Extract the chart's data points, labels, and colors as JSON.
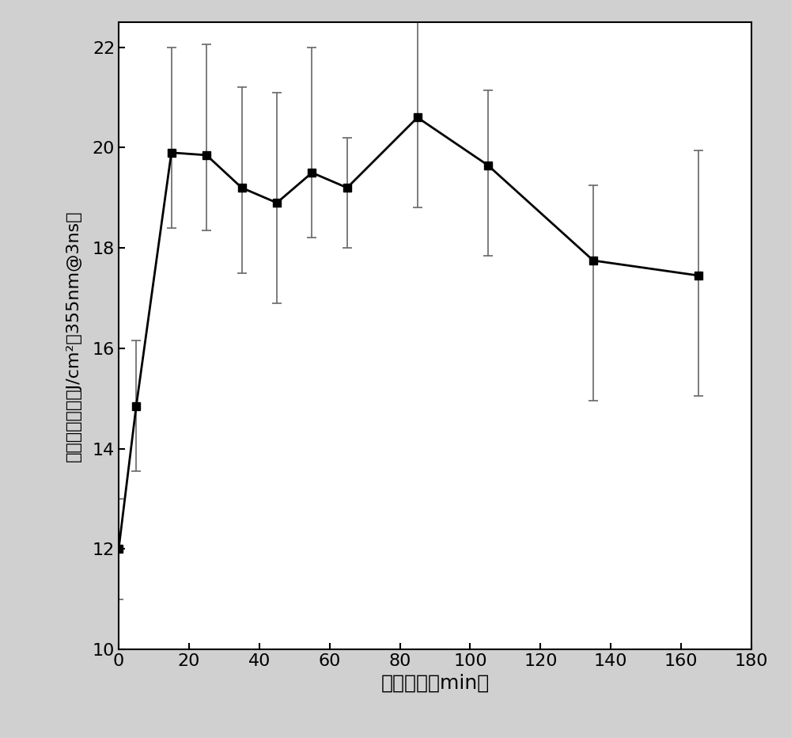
{
  "x": [
    0,
    5,
    15,
    25,
    35,
    45,
    55,
    65,
    85,
    105,
    135,
    165
  ],
  "y": [
    12.0,
    14.85,
    19.9,
    19.85,
    19.2,
    18.9,
    19.5,
    19.2,
    20.6,
    19.65,
    17.75,
    17.45
  ],
  "yerr_upper": [
    1.0,
    1.3,
    2.1,
    2.2,
    2.0,
    2.2,
    2.5,
    1.0,
    2.0,
    1.5,
    1.5,
    2.5
  ],
  "yerr_lower": [
    1.0,
    1.3,
    1.5,
    1.5,
    1.7,
    2.0,
    1.3,
    1.2,
    1.8,
    1.8,
    2.8,
    2.4
  ],
  "xlabel": "虔刻时间（min）",
  "ylabel": "激光损伤阀値（J/cm²，355nm@3ns）",
  "xlim": [
    0,
    180
  ],
  "ylim": [
    10,
    22.5
  ],
  "xticks": [
    0,
    20,
    40,
    60,
    80,
    100,
    120,
    140,
    160,
    180
  ],
  "yticks": [
    10,
    12,
    14,
    16,
    18,
    20,
    22
  ],
  "outer_bg_color": "#d0d0d0",
  "plot_bg_color": "#ffffff",
  "line_color": "#000000",
  "marker_color": "#000000",
  "marker": "s",
  "marker_size": 7,
  "line_width": 2.0,
  "xlabel_fontsize": 18,
  "ylabel_fontsize": 16,
  "tick_fontsize": 16,
  "capsize": 4,
  "elinewidth": 1.2,
  "capthick": 1.2
}
